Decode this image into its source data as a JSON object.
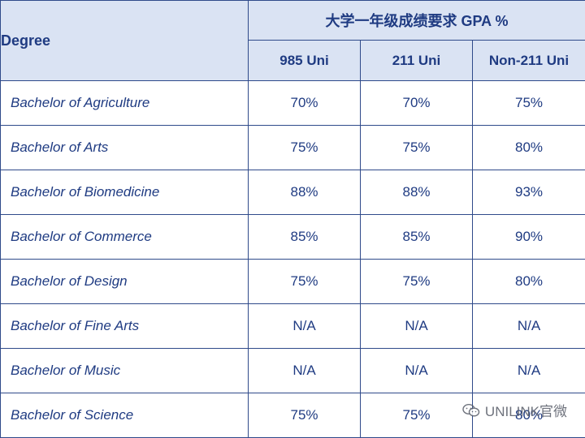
{
  "table": {
    "header": {
      "degree_label": "Degree",
      "gpa_label": "大学一年级成绩要求 GPA %",
      "columns": [
        "985 Uni",
        "211 Uni",
        "Non-211 Uni"
      ]
    },
    "rows": [
      {
        "degree": "Bachelor of Agriculture",
        "values": [
          "70%",
          "70%",
          "75%"
        ]
      },
      {
        "degree": "Bachelor of Arts",
        "values": [
          "75%",
          "75%",
          "80%"
        ]
      },
      {
        "degree": "Bachelor of Biomedicine",
        "values": [
          "88%",
          "88%",
          "93%"
        ]
      },
      {
        "degree": "Bachelor of Commerce",
        "values": [
          "85%",
          "85%",
          "90%"
        ]
      },
      {
        "degree": "Bachelor of Design",
        "values": [
          "75%",
          "75%",
          "80%"
        ]
      },
      {
        "degree": "Bachelor of Fine Arts",
        "values": [
          "N/A",
          "N/A",
          "N/A"
        ]
      },
      {
        "degree": "Bachelor of Music",
        "values": [
          "N/A",
          "N/A",
          "N/A"
        ]
      },
      {
        "degree": "Bachelor of Science",
        "values": [
          "75%",
          "75%",
          "80%"
        ]
      }
    ]
  },
  "watermark": {
    "text": "UNILINK官微",
    "icon": "wechat-icon"
  },
  "colors": {
    "header_bg": "#dae3f3",
    "text": "#1f3b82",
    "border": "#2f4a8a"
  }
}
